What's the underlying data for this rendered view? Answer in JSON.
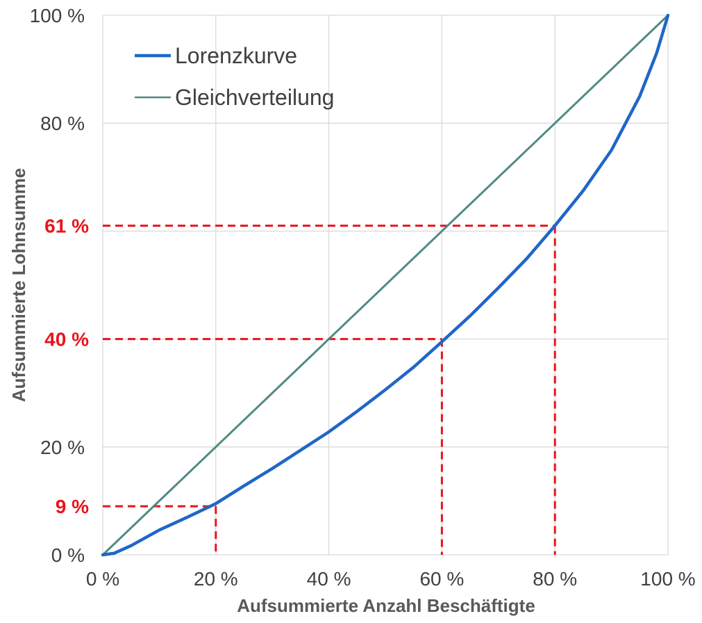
{
  "chart_data": {
    "type": "line",
    "title": "",
    "xlabel": "Aufsummierte Anzahl Beschäftigte",
    "ylabel": "Aufsummierte Lohnsumme",
    "xlim": [
      0,
      100
    ],
    "ylim": [
      0,
      100
    ],
    "grid": true,
    "legend_position": "top-left",
    "x_ticks": [
      "0 %",
      "20 %",
      "40 %",
      "60 %",
      "80 %",
      "100 %"
    ],
    "y_ticks": [
      "0 %",
      "20 %",
      "80 %",
      "100 %"
    ],
    "series": [
      {
        "name": "Lorenzkurve",
        "color": "#1f66c8",
        "x": [
          0,
          2,
          5,
          10,
          15,
          20,
          25,
          30,
          35,
          40,
          45,
          50,
          55,
          60,
          65,
          70,
          75,
          80,
          85,
          90,
          95,
          98,
          100
        ],
        "y": [
          0,
          0.3,
          1.7,
          4.6,
          7.0,
          9.5,
          12.8,
          16.0,
          19.4,
          22.8,
          26.6,
          30.6,
          34.8,
          39.5,
          44.3,
          49.5,
          54.9,
          61.0,
          67.5,
          75.0,
          85.0,
          93.0,
          100
        ]
      },
      {
        "name": "Gleichverteilung",
        "color": "#4f8a86",
        "x": [
          0,
          100
        ],
        "y": [
          0,
          100
        ]
      }
    ],
    "annotations": {
      "color": "#e8141b",
      "reference_lines": [
        {
          "x": 20,
          "y": 9,
          "label": "9 %"
        },
        {
          "x": 60,
          "y": 40,
          "label": "40 %"
        },
        {
          "x": 80,
          "y": 61,
          "label": "61 %"
        }
      ]
    }
  }
}
